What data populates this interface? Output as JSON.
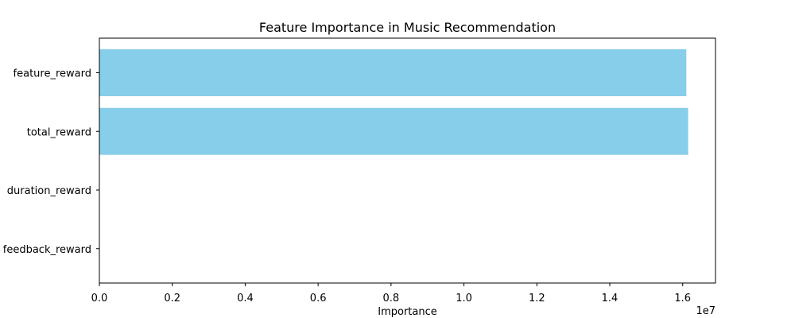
{
  "chart_data": {
    "type": "bar",
    "orientation": "horizontal",
    "title": "Feature Importance in Music Recommendation",
    "xlabel": "Importance",
    "ylabel": "",
    "x_scale_label": "1e7",
    "categories": [
      "feature_reward",
      "total_reward",
      "duration_reward",
      "feedback_reward"
    ],
    "values": [
      16100000,
      16150000,
      0,
      0
    ],
    "xlim": [
      0,
      16900000
    ],
    "xticks": [
      0,
      2000000,
      4000000,
      6000000,
      8000000,
      10000000,
      12000000,
      14000000,
      16000000
    ],
    "xtick_labels": [
      "0.0",
      "0.2",
      "0.4",
      "0.6",
      "0.8",
      "1.0",
      "1.2",
      "1.4",
      "1.6"
    ],
    "bar_color": "#87ceeb",
    "grid": false,
    "legend": "none"
  }
}
